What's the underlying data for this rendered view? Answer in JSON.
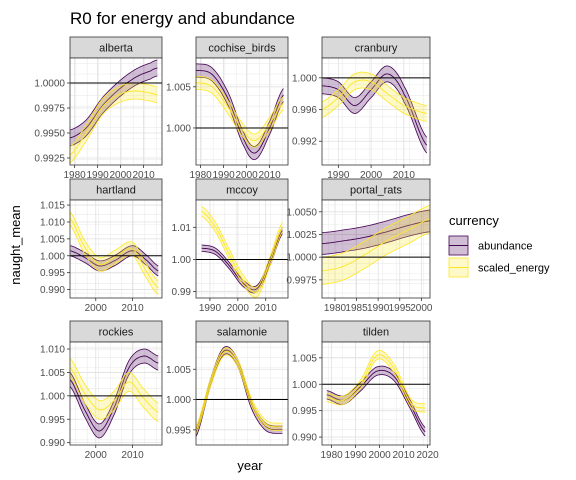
{
  "chart_data": {
    "type": "line",
    "title": "R0 for energy and abundance",
    "xlabel": "year",
    "ylabel": "naught_mean",
    "legend": {
      "title": "currency",
      "placement": "right",
      "entries": [
        {
          "name": "abundance",
          "fill": "#440154",
          "fill_opacity": 0.25,
          "line": "#440154"
        },
        {
          "name": "scaled_energy",
          "fill": "#FDE725",
          "fill_opacity": 0.25,
          "line": "#FDE725"
        }
      ]
    },
    "reference_line": 1.0,
    "grid": true,
    "panels": [
      {
        "name": "alberta",
        "xlim": [
          1978,
          2018
        ],
        "ylim": [
          0.9918,
          1.0025
        ],
        "xticks": [
          1980,
          1990,
          2000,
          2010
        ],
        "xtick_labels": [
          "1980",
          "1990",
          "2000",
          "2010"
        ],
        "yticks": [
          0.9925,
          0.995,
          0.9975,
          1.0
        ],
        "ytick_labels": [
          "0.9925",
          "0.9950",
          "0.9975",
          "1.0000"
        ],
        "show_yticks": true,
        "show_xticks": true,
        "series": [
          {
            "name": "abundance",
            "x": [
              1978,
              1985,
              1992,
              1999,
              2006,
              2013,
              2016
            ],
            "y": [
              0.9945,
              0.9955,
              0.9977,
              0.9993,
              1.0005,
              1.0012,
              1.0015
            ],
            "halfwidth": 0.0008
          },
          {
            "name": "scaled_energy",
            "x": [
              1978,
              1985,
              1992,
              1999,
              2006,
              2013,
              2016
            ],
            "y": [
              0.9928,
              0.995,
              0.9976,
              0.9988,
              0.9992,
              0.999,
              0.9988
            ],
            "halfwidth": 0.0008
          }
        ]
      },
      {
        "name": "cochise_birds",
        "xlim": [
          1978,
          2018
        ],
        "ylim": [
          0.9955,
          1.0085
        ],
        "xticks": [
          1980,
          1990,
          2000,
          2010
        ],
        "xtick_labels": [
          "1980",
          "1990",
          "2000",
          "2010"
        ],
        "yticks": [
          1.0,
          1.005
        ],
        "ytick_labels": [
          "1.000",
          "1.005"
        ],
        "show_yticks": true,
        "show_xticks": true,
        "series": [
          {
            "name": "abundance",
            "x": [
              1978,
              1985,
              1992,
              1999,
              2004,
              2010,
              2016
            ],
            "y": [
              1.007,
              1.0065,
              1.0035,
              0.9985,
              0.997,
              1.0,
              1.004
            ],
            "halfwidth": 0.0008
          },
          {
            "name": "scaled_energy",
            "x": [
              1978,
              1985,
              1992,
              1999,
              2004,
              2010,
              2016
            ],
            "y": [
              1.0055,
              1.005,
              1.0025,
              0.9995,
              0.9985,
              1.0005,
              1.003
            ],
            "halfwidth": 0.0008
          }
        ]
      },
      {
        "name": "cranbury",
        "xlim": [
          1985,
          2018
        ],
        "ylim": [
          0.989,
          1.0025
        ],
        "xticks": [
          1990,
          2000,
          2010
        ],
        "xtick_labels": [
          "1990",
          "2000",
          "2010"
        ],
        "yticks": [
          0.992,
          0.996,
          1.0
        ],
        "ytick_labels": [
          "0.992",
          "0.996",
          "1.000"
        ],
        "show_yticks": true,
        "show_xticks": true,
        "series": [
          {
            "name": "abundance",
            "x": [
              1985,
              1990,
              1995,
              2000,
              2005,
              2010,
              2017
            ],
            "y": [
              0.999,
              0.9985,
              0.9965,
              0.9985,
              1.0005,
              0.998,
              0.9915
            ],
            "halfwidth": 0.001
          },
          {
            "name": "scaled_energy",
            "x": [
              1985,
              1990,
              1995,
              2000,
              2005,
              2010,
              2017
            ],
            "y": [
              0.996,
              0.9975,
              0.9995,
              0.9995,
              0.998,
              0.9965,
              0.9955
            ],
            "halfwidth": 0.001
          }
        ]
      },
      {
        "name": "hartland",
        "xlim": [
          1993,
          2018
        ],
        "ylim": [
          0.9875,
          1.0165
        ],
        "xticks": [
          2000,
          2010
        ],
        "xtick_labels": [
          "2000",
          "2010"
        ],
        "yticks": [
          0.99,
          0.995,
          1.0,
          1.005,
          1.01,
          1.015
        ],
        "ytick_labels": [
          "0.990",
          "0.995",
          "1.000",
          "1.005",
          "1.010",
          "1.015"
        ],
        "show_yticks": true,
        "show_xticks": true,
        "series": [
          {
            "name": "abundance",
            "x": [
              1993,
              1997,
              2001,
              2005,
              2010,
              2014,
              2017
            ],
            "y": [
              1.0015,
              0.9995,
              0.997,
              0.9985,
              1.0015,
              0.9985,
              0.9955
            ],
            "halfwidth": 0.0015
          },
          {
            "name": "scaled_energy",
            "x": [
              1993,
              1997,
              2001,
              2005,
              2010,
              2014,
              2017
            ],
            "y": [
              1.011,
              1.0025,
              0.9975,
              0.9995,
              1.002,
              0.995,
              0.9905
            ],
            "halfwidth": 0.002
          }
        ]
      },
      {
        "name": "mccoy",
        "xlim": [
          1985,
          2018
        ],
        "ylim": [
          0.988,
          1.0185
        ],
        "xticks": [
          1990,
          2000,
          2010
        ],
        "xtick_labels": [
          "1990",
          "2000",
          "2010"
        ],
        "yticks": [
          0.99,
          1.0,
          1.01
        ],
        "ytick_labels": [
          "0.99",
          "1.00",
          "1.01"
        ],
        "show_yticks": true,
        "show_xticks": true,
        "series": [
          {
            "name": "abundance",
            "x": [
              1987,
              1992,
              1997,
              2002,
              2007,
              2012,
              2016
            ],
            "y": [
              1.0035,
              1.0025,
              0.998,
              0.9925,
              0.991,
              1.0,
              1.009
            ],
            "halfwidth": 0.001
          },
          {
            "name": "scaled_energy",
            "x": [
              1987,
              1992,
              1997,
              2002,
              2007,
              2012,
              2016
            ],
            "y": [
              1.015,
              1.01,
              1.0015,
              0.9935,
              0.99,
              1.0005,
              1.01
            ],
            "halfwidth": 0.0015
          }
        ]
      },
      {
        "name": "portal_rats",
        "xlim": [
          1977,
          2002
        ],
        "ylim": [
          0.9955,
          1.0063
        ],
        "xticks": [
          1980,
          1985,
          1990,
          1995,
          2000
        ],
        "xtick_labels": [
          "1980",
          "1985",
          "1990",
          "1995",
          "2000"
        ],
        "yticks": [
          0.9975,
          1.0,
          1.0025,
          1.005
        ],
        "ytick_labels": [
          "0.9975",
          "1.0000",
          "1.0025",
          "1.0050"
        ],
        "show_yticks": true,
        "show_xticks": true,
        "series": [
          {
            "name": "abundance",
            "x": [
              1977,
              1982,
              1987,
              1992,
              1997,
              2002
            ],
            "y": [
              1.0015,
              1.0018,
              1.0022,
              1.0028,
              1.0035,
              1.004
            ],
            "halfwidth": 0.0012
          },
          {
            "name": "scaled_energy",
            "x": [
              1977,
              1982,
              1987,
              1992,
              1997,
              2002
            ],
            "y": [
              0.9985,
              0.999,
              1.0003,
              1.0018,
              1.003,
              1.0042
            ],
            "halfwidth": 0.0015
          }
        ]
      },
      {
        "name": "rockies",
        "xlim": [
          1993,
          2018
        ],
        "ylim": [
          0.9895,
          1.0115
        ],
        "xticks": [
          2000,
          2010
        ],
        "xtick_labels": [
          "2000",
          "2010"
        ],
        "yticks": [
          0.99,
          0.995,
          1.0,
          1.005,
          1.01
        ],
        "ytick_labels": [
          "0.990",
          "0.995",
          "1.000",
          "1.005",
          "1.010"
        ],
        "show_yticks": true,
        "show_xticks": true,
        "series": [
          {
            "name": "abundance",
            "x": [
              1993,
              1997,
              2001,
              2005,
              2009,
              2013,
              2017
            ],
            "y": [
              1.0035,
              0.997,
              0.9925,
              0.9975,
              1.006,
              1.0085,
              1.007
            ],
            "halfwidth": 0.0015
          },
          {
            "name": "scaled_energy",
            "x": [
              1993,
              1997,
              2001,
              2005,
              2009,
              2013,
              2017
            ],
            "y": [
              1.006,
              1.0005,
              0.997,
              0.999,
              1.003,
              0.9995,
              0.9965
            ],
            "halfwidth": 0.002
          }
        ]
      },
      {
        "name": "salamonie",
        "xlim": [
          1985,
          2018
        ],
        "ylim": [
          0.9925,
          1.0095
        ],
        "xticks": [],
        "xtick_labels": [],
        "yticks": [
          0.995,
          1.0,
          1.005
        ],
        "ytick_labels": [
          "0.995",
          "1.000",
          "1.005"
        ],
        "show_yticks": true,
        "show_xticks": false,
        "series": [
          {
            "name": "abundance",
            "x": [
              1985,
              1990,
              1995,
              2000,
              2005,
              2010,
              2016
            ],
            "y": [
              0.9945,
              1.0025,
              1.008,
              1.006,
              0.999,
              0.9955,
              0.995
            ],
            "halfwidth": 0.0006
          },
          {
            "name": "scaled_energy",
            "x": [
              1985,
              1990,
              1995,
              2000,
              2005,
              2010,
              2016
            ],
            "y": [
              0.995,
              1.0025,
              1.0078,
              1.006,
              0.9995,
              0.996,
              0.9955
            ],
            "halfwidth": 0.0006
          }
        ]
      },
      {
        "name": "tilden",
        "xlim": [
          1976,
          2021
        ],
        "ylim": [
          0.9885,
          1.008
        ],
        "xticks": [
          1980,
          1990,
          2000,
          2010,
          2020
        ],
        "xtick_labels": [
          "1980",
          "1990",
          "2000",
          "2010",
          "2020"
        ],
        "yticks": [
          0.99,
          0.995,
          1.0,
          1.005
        ],
        "ytick_labels": [
          "0.990",
          "0.995",
          "1.000",
          "1.005"
        ],
        "show_yticks": true,
        "show_xticks": true,
        "series": [
          {
            "name": "abundance",
            "x": [
              1978,
              1985,
              1992,
              1999,
              2006,
              2013,
              2019
            ],
            "y": [
              0.998,
              0.997,
              0.9995,
              1.0025,
              1.0015,
              0.996,
              0.991
            ],
            "halfwidth": 0.0008
          },
          {
            "name": "scaled_energy",
            "x": [
              1978,
              1985,
              1992,
              1999,
              2006,
              2013,
              2019
            ],
            "y": [
              0.9975,
              0.997,
              1.0,
              1.0055,
              1.003,
              0.9965,
              0.9955
            ],
            "halfwidth": 0.0008
          }
        ]
      }
    ]
  }
}
